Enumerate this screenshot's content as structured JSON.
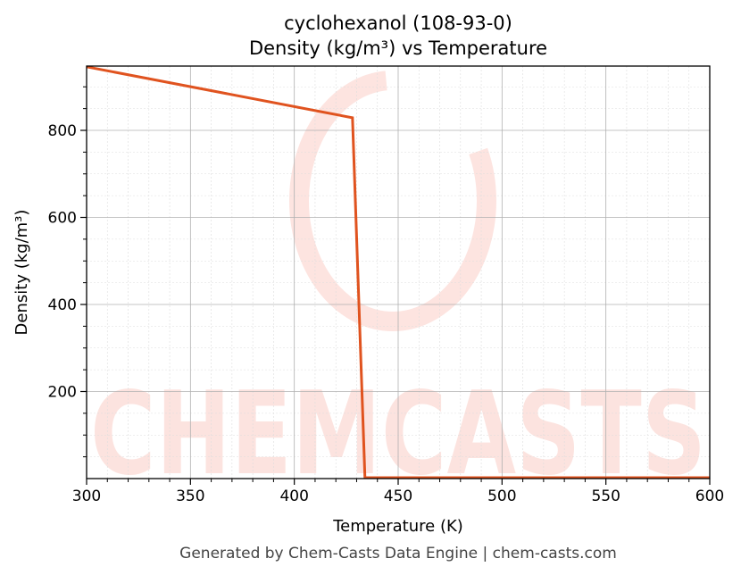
{
  "chart_data": {
    "type": "line",
    "title": "cyclohexanol (108-93-0)",
    "subtitle": "Density (kg/m³) vs Temperature",
    "xlabel": "Temperature (K)",
    "ylabel": "Density (kg/m³)",
    "xlim": [
      300,
      600
    ],
    "ylim": [
      2,
      948
    ],
    "xticks": [
      300,
      350,
      400,
      450,
      500,
      550,
      600
    ],
    "yticks": [
      200,
      400,
      600,
      800
    ],
    "grid": true,
    "line_color": "#e0531f",
    "series": [
      {
        "x": [
          300,
          428,
          434,
          600
        ],
        "y": [
          946,
          829,
          2,
          2
        ]
      }
    ]
  },
  "watermark": "CHEMCASTS",
  "footer": "Generated by Chem-Casts Data Engine | chem-casts.com"
}
